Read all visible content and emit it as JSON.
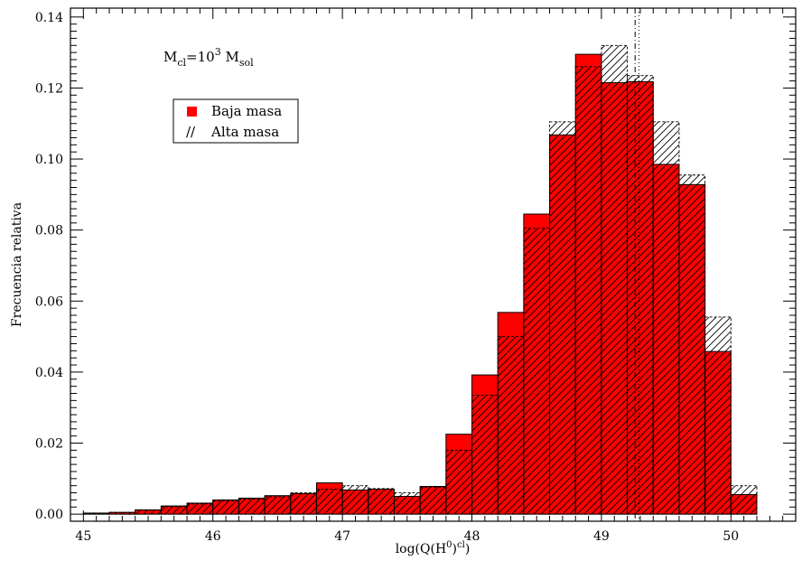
{
  "chart_data": {
    "type": "bar",
    "xlabel": {
      "main": "log(Q(H",
      "sup": "0",
      "mid": ")",
      "sup2": "cl",
      "end": ")"
    },
    "ylabel": "Frecuencia relativa",
    "annotation": {
      "m": "M",
      "m_sub": "cl",
      "eq": "=10",
      "exp": "3",
      "msol": " M",
      "msol_sub": "sol"
    },
    "xlim": [
      44.9,
      50.5
    ],
    "ylim": [
      -0.002,
      0.1425
    ],
    "x_ticks": [
      "45",
      "46",
      "47",
      "48",
      "49",
      "50"
    ],
    "y_ticks": [
      "0.00",
      "0.02",
      "0.04",
      "0.06",
      "0.08",
      "0.10",
      "0.12",
      "0.14"
    ],
    "bin_width": 0.2,
    "bins": [
      {
        "x0": 45.0,
        "baja": 0.0003,
        "alta": 0.0003
      },
      {
        "x0": 45.2,
        "baja": 0.0005,
        "alta": 0.0005
      },
      {
        "x0": 45.4,
        "baja": 0.0012,
        "alta": 0.0011
      },
      {
        "x0": 45.6,
        "baja": 0.0023,
        "alta": 0.0021
      },
      {
        "x0": 45.8,
        "baja": 0.0031,
        "alta": 0.0029
      },
      {
        "x0": 46.0,
        "baja": 0.004,
        "alta": 0.0037
      },
      {
        "x0": 46.2,
        "baja": 0.0045,
        "alta": 0.0042
      },
      {
        "x0": 46.4,
        "baja": 0.0052,
        "alta": 0.0049
      },
      {
        "x0": 46.6,
        "baja": 0.0058,
        "alta": 0.006
      },
      {
        "x0": 46.8,
        "baja": 0.0088,
        "alta": 0.007
      },
      {
        "x0": 47.0,
        "baja": 0.0068,
        "alta": 0.008
      },
      {
        "x0": 47.2,
        "baja": 0.007,
        "alta": 0.0072
      },
      {
        "x0": 47.4,
        "baja": 0.005,
        "alta": 0.006
      },
      {
        "x0": 47.6,
        "baja": 0.0078,
        "alta": 0.0076
      },
      {
        "x0": 47.8,
        "baja": 0.0225,
        "alta": 0.018
      },
      {
        "x0": 48.0,
        "baja": 0.0392,
        "alta": 0.0335
      },
      {
        "x0": 48.2,
        "baja": 0.0568,
        "alta": 0.05
      },
      {
        "x0": 48.4,
        "baja": 0.0845,
        "alta": 0.0805
      },
      {
        "x0": 48.6,
        "baja": 0.1068,
        "alta": 0.1105
      },
      {
        "x0": 48.8,
        "baja": 0.1295,
        "alta": 0.126
      },
      {
        "x0": 49.0,
        "baja": 0.1215,
        "alta": 0.132
      },
      {
        "x0": 49.2,
        "baja": 0.1218,
        "alta": 0.1235
      },
      {
        "x0": 49.4,
        "baja": 0.0985,
        "alta": 0.1105
      },
      {
        "x0": 49.6,
        "baja": 0.0928,
        "alta": 0.0955
      },
      {
        "x0": 49.8,
        "baja": 0.0458,
        "alta": 0.0555
      },
      {
        "x0": 50.0,
        "baja": 0.0055,
        "alta": 0.008
      }
    ],
    "vlines": [
      {
        "x": 49.26,
        "style": "dashdot"
      },
      {
        "x": 49.29,
        "style": "dotted"
      }
    ],
    "legend": {
      "placement": "top-left",
      "items": [
        {
          "symbol": "filled-square",
          "label": "Baja masa"
        },
        {
          "symbol": "hatch",
          "glyph": "//",
          "label": "Alta masa"
        }
      ]
    },
    "colors": {
      "baja_fill": "#ff0000",
      "outline": "#000000",
      "hatch": "#000000",
      "background": "#ffffff"
    }
  }
}
